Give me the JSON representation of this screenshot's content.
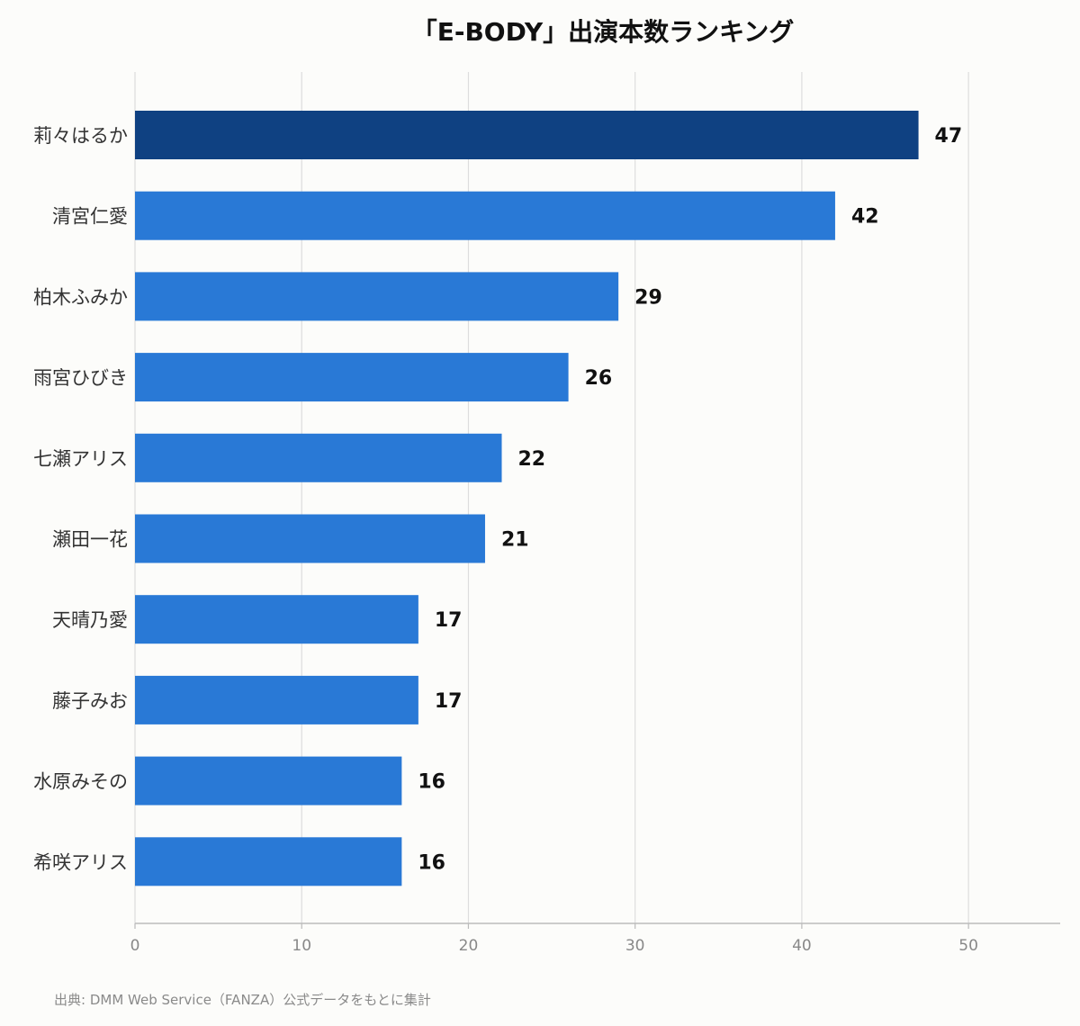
{
  "chart_data": {
    "type": "bar",
    "orientation": "horizontal",
    "title": "「E-BODY」出演本数ランキング",
    "categories": [
      "莉々はるか",
      "清宮仁愛",
      "柏木ふみか",
      "雨宮ひびき",
      "七瀬アリス",
      "瀬田一花",
      "天晴乃愛",
      "藤子みお",
      "水原みその",
      "希咲アリス"
    ],
    "values": [
      47,
      42,
      29,
      26,
      22,
      21,
      17,
      17,
      16,
      16
    ],
    "xlabel": "",
    "ylabel": "",
    "xlim": [
      0,
      55.5
    ],
    "xticks": [
      0,
      10,
      20,
      30,
      40,
      50
    ],
    "grid": true,
    "highlight_index": 0,
    "colors": {
      "highlight": "#0f4182",
      "bar": "#2979d6",
      "grid": "#dddddd",
      "axis": "#bbbbbb"
    }
  },
  "footer": {
    "source": "出典: DMM Web Service（FANZA）公式データをもとに集計"
  }
}
